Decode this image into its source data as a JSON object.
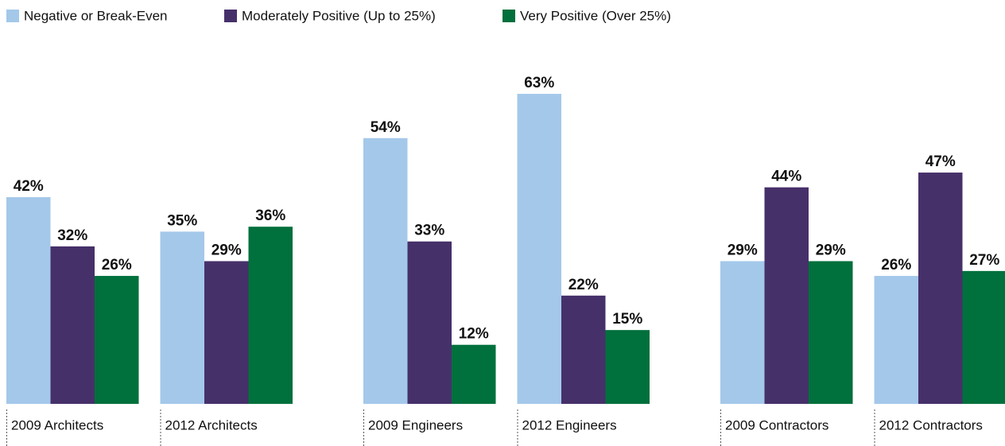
{
  "chart_data": {
    "type": "bar",
    "categories": [
      "2009 Architects",
      "2012 Architects",
      "2009 Engineers",
      "2012 Engineers",
      "2009 Contractors",
      "2012 Contractors"
    ],
    "series": [
      {
        "name": "Negative or Break-Even",
        "color": "#a4c8ea",
        "values": [
          42,
          35,
          54,
          63,
          29,
          26
        ],
        "value_labels": [
          "42%",
          "35%",
          "54%",
          "63%",
          "29%",
          "26%"
        ]
      },
      {
        "name": "Moderately Positive (Up to 25%)",
        "color": "#46306a",
        "values": [
          32,
          29,
          33,
          22,
          44,
          47
        ],
        "value_labels": [
          "32%",
          "29%",
          "33%",
          "22%",
          "44%",
          "47%"
        ]
      },
      {
        "name": "Very Positive (Over 25%)",
        "color": "#00703c",
        "values": [
          26,
          36,
          12,
          15,
          29,
          27
        ],
        "value_labels": [
          "26%",
          "36%",
          "12%",
          "15%",
          "29%",
          "27%"
        ]
      }
    ],
    "legend": "top-left"
  }
}
